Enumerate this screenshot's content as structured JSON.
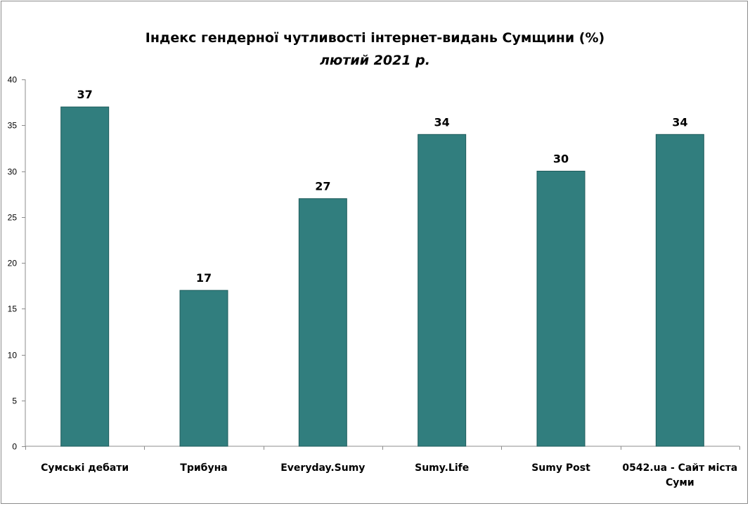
{
  "chart_data": {
    "type": "bar",
    "title": "Індекс гендерної чутливості інтернет-видань Сумщини (%)",
    "subtitle": "лютий 2021 р.",
    "categories": [
      "Сумські дебати",
      "Трибуна",
      "Everyday.Sumy",
      "Sumy.Life",
      "Sumy Post",
      "0542.ua - Сайт міста Суми"
    ],
    "category_lines": [
      [
        "Сумські дебати"
      ],
      [
        "Трибуна"
      ],
      [
        "Everyday.Sumy"
      ],
      [
        "Sumy.Life"
      ],
      [
        "Sumy Post"
      ],
      [
        "0542.ua - Сайт міста",
        "Суми"
      ]
    ],
    "values": [
      37,
      17,
      27,
      34,
      30,
      34
    ],
    "data_labels": [
      "37",
      "17",
      "27",
      "34",
      "30",
      "34"
    ],
    "ylim": [
      0,
      40
    ],
    "yticks": [
      "0",
      "5",
      "10",
      "15",
      "20",
      "25",
      "30",
      "35",
      "40"
    ],
    "grid": false,
    "legend": "none",
    "bar_color": "#317E7E",
    "bar_edge_color": "#1F5C5C"
  }
}
